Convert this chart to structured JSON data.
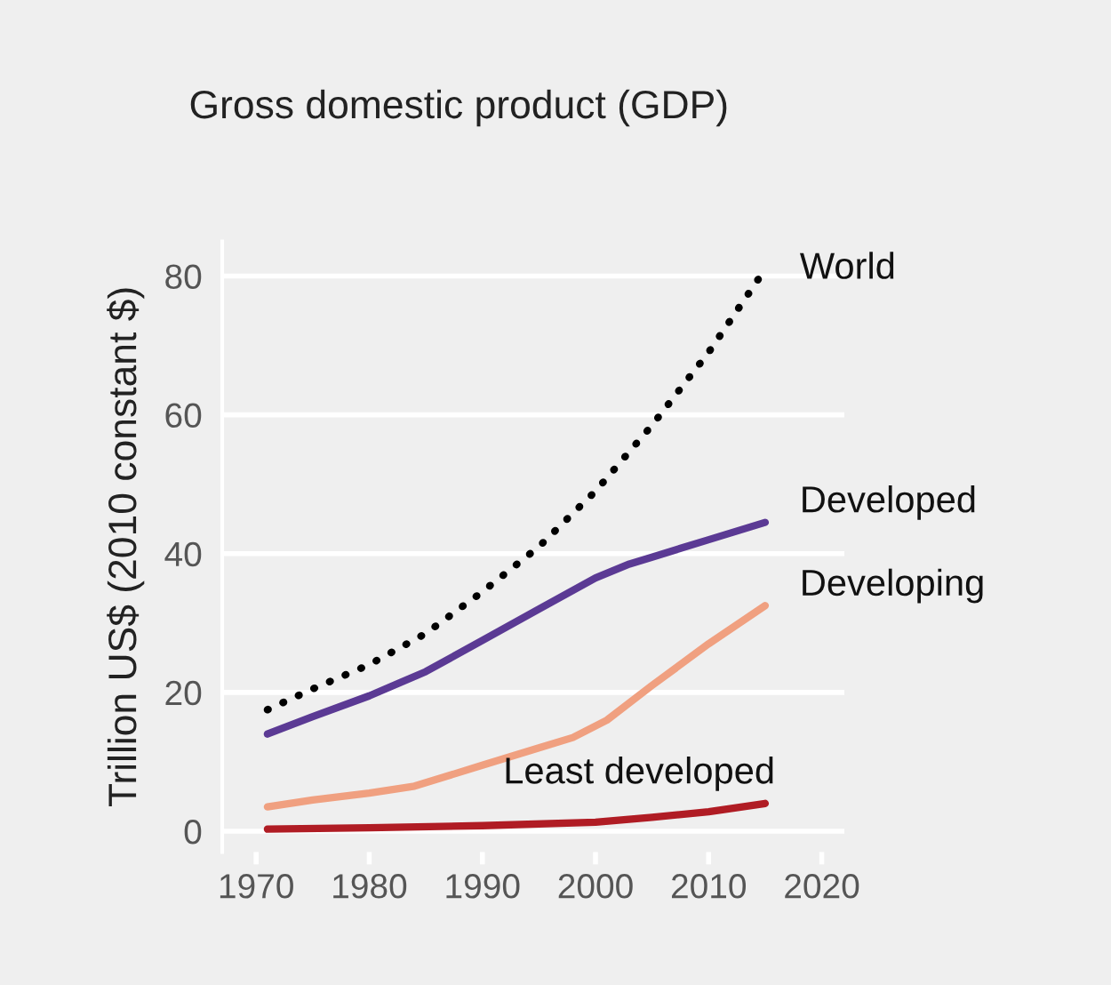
{
  "chart_data": {
    "type": "line",
    "title": "Gross domestic product (GDP)",
    "ylabel": "Trillion US$ (2010 constant $)",
    "xlim": [
      1967,
      2022
    ],
    "xticks": [
      1970,
      1980,
      1990,
      2000,
      2010,
      2020
    ],
    "ylim": [
      -3,
      85
    ],
    "yticks": [
      0,
      20,
      40,
      60,
      80
    ],
    "grid": "y",
    "legend": false,
    "series": [
      {
        "name": "World",
        "color": "#000000",
        "line_style": "dotted",
        "x": [
          1971,
          1975,
          1980,
          1985,
          1990,
          1995,
          2000,
          2005,
          2010,
          2015
        ],
        "values": [
          17.5,
          20.5,
          24,
          28.5,
          34.5,
          41,
          49,
          58.5,
          69,
          81
        ]
      },
      {
        "name": "Developed",
        "color": "#5b3a94",
        "line_style": "solid",
        "x": [
          1971,
          1975,
          1980,
          1985,
          1990,
          1995,
          2000,
          2003,
          2005,
          2010,
          2015
        ],
        "values": [
          14,
          16.5,
          19.5,
          23,
          27.5,
          32,
          36.5,
          38.5,
          39.5,
          42,
          44.5
        ]
      },
      {
        "name": "Developing",
        "color": "#f0a080",
        "line_style": "solid",
        "x": [
          1971,
          1975,
          1980,
          1984,
          1990,
          1995,
          1998,
          2001,
          2005,
          2010,
          2015
        ],
        "values": [
          3.5,
          4.5,
          5.5,
          6.5,
          9.5,
          12,
          13.5,
          16,
          21,
          27,
          32.5
        ]
      },
      {
        "name": "Least developed",
        "color": "#b01c24",
        "line_style": "solid",
        "x": [
          1971,
          1980,
          1990,
          2000,
          2005,
          2010,
          2015
        ],
        "values": [
          0.3,
          0.5,
          0.8,
          1.3,
          2,
          2.8,
          4
        ]
      }
    ]
  }
}
